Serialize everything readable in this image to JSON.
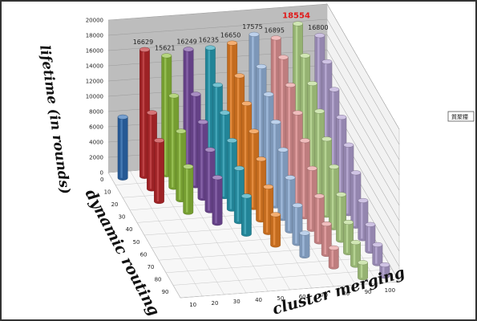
{
  "chart_data": {
    "type": "bar3d",
    "title": "",
    "zlabel": "lifetime (in rounds)",
    "ylabel": "dynamic routing",
    "xlabel": "cluster merging",
    "zlim": [
      0,
      20000
    ],
    "z_ticks": [
      0,
      2000,
      4000,
      6000,
      8000,
      10000,
      12000,
      14000,
      16000,
      18000,
      20000
    ],
    "dynamic_routing_ticks": [
      0,
      10,
      20,
      30,
      40,
      50,
      60,
      70,
      80,
      90
    ],
    "cluster_merging_ticks": [
      10,
      20,
      30,
      40,
      50,
      60,
      70,
      80,
      90,
      100
    ],
    "grid": true,
    "legend_text": "質聚糧",
    "highlight_max": 18554,
    "series": [
      {
        "cluster_merging": 10,
        "color": "#2e6db5",
        "values": [
          8000
        ]
      },
      {
        "cluster_merging": 20,
        "color": "#c0292d",
        "values": [
          16629,
          10000,
          8000
        ]
      },
      {
        "cluster_merging": 30,
        "color": "#8fbf3c",
        "values": [
          15621,
          12000,
          9000,
          6000
        ]
      },
      {
        "cluster_merging": 40,
        "color": "#7a4fa3",
        "values": [
          16249,
          12000,
          10000,
          8000,
          6000
        ]
      },
      {
        "cluster_merging": 50,
        "color": "#2aa1b8",
        "values": [
          16235,
          13000,
          11000,
          9000,
          7000,
          5000
        ]
      },
      {
        "cluster_merging": 60,
        "color": "#ee8324",
        "values": [
          16650,
          14000,
          12000,
          10000,
          8000,
          6000,
          4000
        ]
      },
      {
        "cluster_merging": 70,
        "color": "#99b8e0",
        "values": [
          17575,
          15000,
          13000,
          11000,
          9000,
          7000,
          5000,
          3000
        ]
      },
      {
        "cluster_merging": 80,
        "color": "#e8999a",
        "values": [
          16895,
          16000,
          14000,
          12000,
          10000,
          8000,
          6000,
          4000,
          2500
        ]
      },
      {
        "cluster_merging": 90,
        "color": "#b6d98b",
        "values": [
          18554,
          16000,
          14000,
          12000,
          10000,
          8000,
          6000,
          4000,
          3000,
          2000
        ]
      },
      {
        "cluster_merging": 100,
        "color": "#b5a3d6",
        "values": [
          16800,
          15000,
          13000,
          11000,
          9000,
          7000,
          5000,
          3500,
          2500,
          1500
        ]
      }
    ],
    "data_labels": [
      {
        "cluster_merging": 20,
        "text": "16629"
      },
      {
        "cluster_merging": 30,
        "text": "15621"
      },
      {
        "cluster_merging": 40,
        "text": "16249"
      },
      {
        "cluster_merging": 50,
        "text": "16235"
      },
      {
        "cluster_merging": 60,
        "text": "16650"
      },
      {
        "cluster_merging": 70,
        "text": "17575"
      },
      {
        "cluster_merging": 80,
        "text": "16895"
      },
      {
        "cluster_merging": 90,
        "text": "18554"
      },
      {
        "cluster_merging": 100,
        "text": "16800"
      }
    ]
  }
}
